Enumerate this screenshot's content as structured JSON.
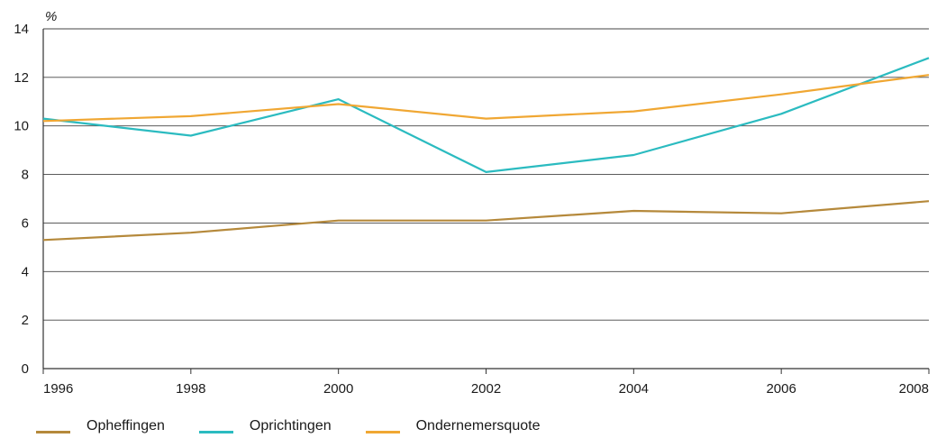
{
  "chart_data": {
    "type": "line",
    "title": "",
    "xlabel": "",
    "ylabel": "",
    "y_unit": "%",
    "x": [
      1996,
      1998,
      2000,
      2002,
      2004,
      2006,
      2008
    ],
    "x_ticks": [
      "1996",
      "1998",
      "2000",
      "2002",
      "2004",
      "2006",
      "2008"
    ],
    "y_ticks": [
      "0",
      "2",
      "4",
      "6",
      "8",
      "10",
      "12",
      "14"
    ],
    "ylim": [
      0,
      14
    ],
    "xlim": [
      1996,
      2008
    ],
    "grid": "horizontal",
    "legend_position": "bottom-left",
    "series": [
      {
        "name": "Opheffingen",
        "color": "#b5893b",
        "values": [
          5.3,
          5.6,
          6.1,
          6.1,
          6.5,
          6.4,
          6.9
        ]
      },
      {
        "name": "Oprichtingen",
        "color": "#2bbbc0",
        "values": [
          10.3,
          9.6,
          11.1,
          8.1,
          8.8,
          10.5,
          12.8
        ]
      },
      {
        "name": "Ondernemersquote",
        "color": "#f0a733",
        "values": [
          10.2,
          10.4,
          10.9,
          10.3,
          10.6,
          11.3,
          12.1
        ]
      }
    ]
  }
}
